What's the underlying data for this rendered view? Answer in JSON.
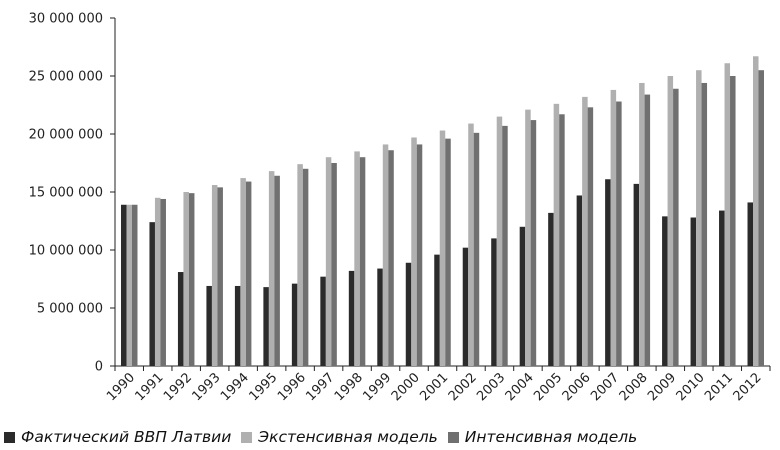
{
  "chart_data": {
    "type": "bar",
    "categories": [
      "1990",
      "1991",
      "1992",
      "1993",
      "1994",
      "1995",
      "1996",
      "1997",
      "1998",
      "1999",
      "2000",
      "2001",
      "2002",
      "2003",
      "2004",
      "2005",
      "2006",
      "2007",
      "2008",
      "2009",
      "2010",
      "2011",
      "2012"
    ],
    "series": [
      {
        "name": "Фактический ВВП Латвии",
        "color": "#2b2b2b",
        "values": [
          13900000,
          12400000,
          8100000,
          6900000,
          6900000,
          6800000,
          7100000,
          7700000,
          8200000,
          8400000,
          8900000,
          9600000,
          10200000,
          11000000,
          12000000,
          13200000,
          14700000,
          16100000,
          15700000,
          12900000,
          12800000,
          13400000,
          14100000
        ]
      },
      {
        "name": "Экстенсивная модель",
        "color": "#b0b0b0",
        "values": [
          13900000,
          14500000,
          15000000,
          15600000,
          16200000,
          16800000,
          17400000,
          18000000,
          18500000,
          19100000,
          19700000,
          20300000,
          20900000,
          21500000,
          22100000,
          22600000,
          23200000,
          23800000,
          24400000,
          25000000,
          25500000,
          26100000,
          26700000
        ]
      },
      {
        "name": "Интенсивная модель",
        "color": "#707070",
        "values": [
          13900000,
          14400000,
          14900000,
          15400000,
          15900000,
          16400000,
          17000000,
          17500000,
          18000000,
          18600000,
          19100000,
          19600000,
          20100000,
          20700000,
          21200000,
          21700000,
          22300000,
          22800000,
          23400000,
          23900000,
          24400000,
          25000000,
          25500000
        ]
      }
    ],
    "ylim": [
      0,
      30000000
    ],
    "yticks": [
      0,
      5000000,
      10000000,
      15000000,
      20000000,
      25000000,
      30000000
    ],
    "ytick_labels": [
      "0",
      "5 000 000",
      "10 000 000",
      "15 000 000",
      "20 000 000",
      "25 000 000",
      "30 000 000"
    ],
    "grid": false,
    "legend_position": "bottom"
  }
}
